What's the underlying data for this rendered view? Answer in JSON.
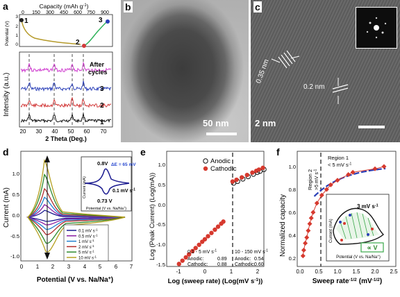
{
  "panels": {
    "a": {
      "letter": "a",
      "top_axis_label": "Capacity (mAh g",
      "top_axis_sup": "-1",
      "top_axis_close": ")",
      "top_ticks": [
        "0",
        "150",
        "300",
        "450",
        "600",
        "750",
        "900"
      ],
      "potential_label": "Potential (V)",
      "potential_ticks": [
        "3",
        "2",
        "1",
        "0"
      ],
      "point_labels": [
        "1",
        "2",
        "3"
      ],
      "ylabel": "Intensity (a.u.)",
      "xlabel": "2 Theta (Deg.)",
      "x_ticks": [
        "20",
        "30",
        "40",
        "50",
        "60",
        "70"
      ],
      "annotation_line1": "After",
      "annotation_line2": "cycles",
      "trace_labels": [
        "3",
        "2",
        "1"
      ],
      "colors": {
        "magenta": "#d040d0",
        "blue": "#2a3fb8",
        "red": "#d23a3a",
        "black": "#111111",
        "olive": "#b59a2a",
        "green": "#2fb25a"
      }
    },
    "b": {
      "letter": "b",
      "scale_label": "50 nm"
    },
    "c": {
      "letter": "c",
      "scale_label": "2 nm",
      "spacing1": "0.35 nm",
      "spacing2": "0.2 nm"
    },
    "d": {
      "letter": "d",
      "ylabel": "Current (mA)",
      "xlabel": "Potential (V vs. Na/Na",
      "xlabel_sup": "+",
      "xlabel_close": ")",
      "x_ticks": [
        "0",
        "1",
        "2",
        "3",
        "4",
        "5",
        "6",
        "7"
      ],
      "y_ticks": [
        "1.0",
        "0.5",
        "0.0",
        "-0.5",
        "-1.0"
      ],
      "legend": [
        {
          "label": "0.1 mV s",
          "sup": "-1",
          "color": "#1a1a90"
        },
        {
          "label": "0.5 mV s",
          "sup": "-1",
          "color": "#8a1aa0"
        },
        {
          "label": "1 mV s",
          "sup": "-1",
          "color": "#1e7fd0"
        },
        {
          "label": "2 mV s",
          "sup": "-1",
          "color": "#b02a2a"
        },
        {
          "label": "5 mV s",
          "sup": "-1",
          "color": "#2e8a2e"
        },
        {
          "label": "10 mV s",
          "sup": "-1",
          "color": "#b5a020"
        }
      ],
      "inset": {
        "ylabel": "Current (mA)",
        "xlabel": "Potential (V vs. Na/Na",
        "xlabel_sup": "+",
        "xlabel_close": ")",
        "v_high": "0.8V",
        "delta": "ΔE = 65 mV",
        "rate": "0.1 mV s",
        "rate_sup": "-1",
        "v_low": "0.73 V"
      }
    },
    "e": {
      "letter": "e",
      "ylabel": "Log (Peak Current) (Log(mA))",
      "xlabel": "Log (sweep rate) (Log(mV s",
      "xlabel_sup": "-1",
      "xlabel_close": "))",
      "x_ticks": [
        "-1",
        "0",
        "1",
        "2"
      ],
      "y_ticks": [
        "1.0",
        "0.5",
        "0.0",
        "-0.5",
        "-1.0",
        "-1.5"
      ],
      "legend": [
        "Anodic",
        "Cathodic"
      ],
      "region1_title": "0.1 - 5 mV s",
      "region1_title_sup": "-1",
      "region1_anodic": "Anodic:",
      "region1_anodic_val": "0.89",
      "region1_cathodic": "Cathodic:",
      "region1_cathodic_val": "0.88",
      "region2_title": "10 - 150 mV s",
      "region2_title_sup": "-1",
      "region2_anodic": "Anodic:",
      "region2_anodic_val": "0.54",
      "region2_cathodic": "Cathodic:",
      "region2_cathodic_val": "0.60",
      "colors": {
        "cathodic": "#d6392e",
        "anodic": "#111111"
      }
    },
    "f": {
      "letter": "f",
      "ylabel": "Normalized capacity",
      "xlabel": "Sweep rate",
      "xlabel_sup": "-1/2",
      "xlabel_units": "(mV",
      "xlabel_units_sup": "-1/2",
      "xlabel_close": ")",
      "x_ticks": [
        "0.0",
        "0.5",
        "1.0",
        "1.5",
        "2.0",
        "2.5"
      ],
      "y_ticks": [
        "1.0",
        "0.8",
        "0.6",
        "0.4",
        "0.2"
      ],
      "region1": [
        "Region 1",
        "< 5 mV s"
      ],
      "region1_sup": "-1",
      "region2": [
        "Region 2",
        ">5 mV s"
      ],
      "region2_sup": "-1",
      "inset_rate": "3 mV s",
      "inset_rate_sup": "-1",
      "inset_ylabel": "Current (mA)",
      "inset_xlabel": "Potential (V vs. Na/Na",
      "inset_xlabel_sup": "+",
      "inset_xlabel_close": ")",
      "inset_box": "∝ V",
      "colors": {
        "points": "#d6392e",
        "fit": "#2a3fb8"
      }
    }
  }
}
